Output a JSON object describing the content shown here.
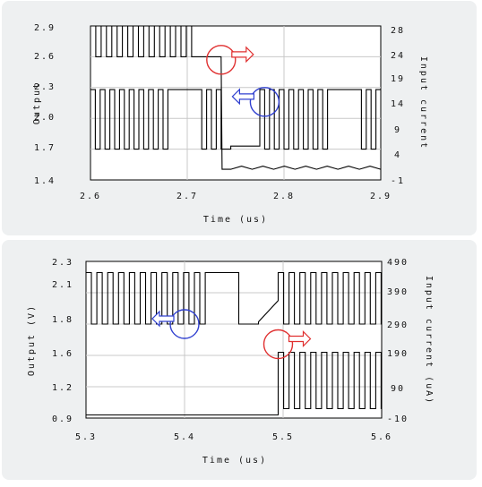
{
  "colors": {
    "background": "#eef0f1",
    "grid": "#c8c8c8",
    "trace": "#000000",
    "red_marker": "#e03030",
    "blue_marker": "#3040d0"
  },
  "chart_data": [
    {
      "type": "line",
      "xlabel": "Time (us)",
      "ylabel_left": "Output",
      "ylabel_right": "Input current",
      "xlim": [
        2.6,
        2.9
      ],
      "ylim_left": [
        1.4,
        2.9
      ],
      "ylim_right": [
        -1,
        28
      ],
      "x_ticks": [
        "2.6",
        "2.7",
        "2.8",
        "2.9"
      ],
      "y_left_ticks": [
        "2.9",
        "2.6",
        "2.3",
        "2.0",
        "1.7",
        "1.4"
      ],
      "y_right_ticks": [
        "28",
        "24",
        "19",
        "14",
        "9",
        "4",
        "-1"
      ],
      "grid": true,
      "markers": [
        {
          "color": "red",
          "x": 2.735,
          "y": 2.57,
          "arrow": "right"
        },
        {
          "color": "blue",
          "x": 2.78,
          "y": 2.16,
          "arrow": "left"
        }
      ],
      "series": [
        {
          "axis": "left",
          "style": "square",
          "baseline": 1.7,
          "segments": [
            {
              "from": 2.6,
              "to": 2.735,
              "osc": true,
              "high": 2.28,
              "low": 1.7,
              "period": 0.01,
              "gaps": [
                [
                  2.68,
                  2.705
                ]
              ]
            },
            {
              "from": 2.735,
              "to": 2.745,
              "level": 1.7
            },
            {
              "from": 2.745,
              "to": 2.775,
              "level": 1.73,
              "gaps": []
            },
            {
              "from": 2.775,
              "to": 2.9,
              "osc": true,
              "high": 2.28,
              "low": 1.7,
              "period": 0.01,
              "gaps": [
                [
                  2.845,
                  2.87
                ]
              ]
            }
          ]
        },
        {
          "axis": "right",
          "style": "square",
          "segments": [
            {
              "from": 2.6,
              "to": 2.705,
              "osc": true,
              "high": 28,
              "low": 22.2,
              "period": 0.011
            },
            {
              "from": 2.705,
              "to": 2.735,
              "level": 22.2
            },
            {
              "from": 2.735,
              "to": 2.745,
              "level": 22.2,
              "drop_to": 1.0
            },
            {
              "from": 2.745,
              "to": 2.9,
              "level": 1.0,
              "ripple": 0.6
            }
          ]
        }
      ]
    },
    {
      "type": "line",
      "xlabel": "Time (us)",
      "ylabel_left": "Output (V)",
      "ylabel_right": "Input current (uA)",
      "xlim": [
        5.3,
        5.6
      ],
      "ylim_left": [
        0.9,
        2.3
      ],
      "ylim_right": [
        -10,
        490
      ],
      "x_ticks": [
        "5.3",
        "5.4",
        "5.5",
        "5.6"
      ],
      "y_left_ticks": [
        "2.3",
        "2.1",
        "1.8",
        "1.6",
        "1.2",
        "0.9"
      ],
      "y_right_ticks": [
        "490",
        "390",
        "290",
        "190",
        "90",
        "-10"
      ],
      "grid": true,
      "markers": [
        {
          "color": "blue",
          "x": 5.4,
          "y": 1.74,
          "arrow": "left"
        },
        {
          "color": "red",
          "x": 5.495,
          "y": 1.56,
          "arrow": "right"
        }
      ],
      "series": [
        {
          "axis": "left",
          "style": "square",
          "segments": [
            {
              "from": 5.3,
              "to": 5.425,
              "osc": true,
              "high": 2.2,
              "low": 1.74,
              "period": 0.011
            },
            {
              "from": 5.425,
              "to": 5.455,
              "level": 2.2
            },
            {
              "from": 5.455,
              "to": 5.475,
              "level": 1.74
            },
            {
              "from": 5.475,
              "to": 5.495,
              "level": 1.76,
              "ramp_to": 1.95
            },
            {
              "from": 5.495,
              "to": 5.6,
              "osc": true,
              "high": 2.2,
              "low": 1.74,
              "period": 0.011
            }
          ]
        },
        {
          "axis": "right",
          "style": "square",
          "segments": [
            {
              "from": 5.3,
              "to": 5.495,
              "level": 0
            },
            {
              "from": 5.495,
              "to": 5.6,
              "osc": true,
              "high": 200,
              "low": 20,
              "period": 0.011
            }
          ]
        }
      ]
    }
  ]
}
